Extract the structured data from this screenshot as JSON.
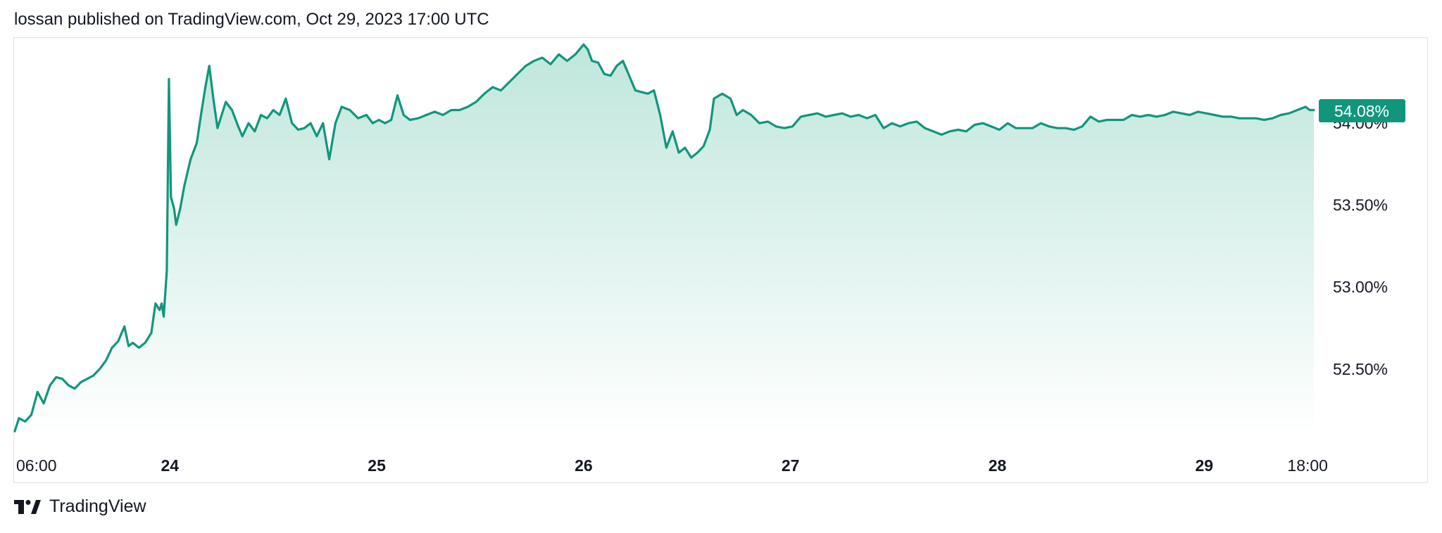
{
  "header": {
    "publish_text": "lossan published on TradingView.com, Oct 29, 2023 17:00 UTC"
  },
  "footer": {
    "brand": "TradingView",
    "logo_icon": "tradingview-logo-icon"
  },
  "colors": {
    "line": "#11967c",
    "fill_top": "#bfe6dc",
    "fill_bottom": "#ffffff",
    "badge": "#11967c",
    "badge_text": "#ffffff",
    "axis_text": "#131722",
    "border": "#e0e3eb"
  },
  "chart_data": {
    "type": "area",
    "title": "",
    "xlabel": "",
    "ylabel": "",
    "grid": false,
    "x_ticks": [
      {
        "label": "06:00",
        "x": 0.0,
        "bold": false
      },
      {
        "label": "24",
        "x": 0.75,
        "bold": true
      },
      {
        "label": "25",
        "x": 1.75,
        "bold": true
      },
      {
        "label": "26",
        "x": 2.75,
        "bold": true
      },
      {
        "label": "27",
        "x": 3.75,
        "bold": true
      },
      {
        "label": "28",
        "x": 4.75,
        "bold": true
      },
      {
        "label": "29",
        "x": 5.75,
        "bold": true
      },
      {
        "label": "18:00",
        "x": 6.25,
        "bold": false
      }
    ],
    "y_ticks": [
      {
        "label": "52.50%",
        "value": 52.5
      },
      {
        "label": "53.00%",
        "value": 53.0
      },
      {
        "label": "53.50%",
        "value": 53.5
      },
      {
        "label": "54.00%",
        "value": 54.0
      }
    ],
    "ylim": [
      52.1,
      54.55
    ],
    "last_value_label": "54.08%",
    "last_value": 54.08,
    "x_unit": "days since Oct 23 00:00",
    "series": [
      {
        "values": [
          [
            0.0,
            52.12
          ],
          [
            0.02,
            52.2
          ],
          [
            0.05,
            52.18
          ],
          [
            0.08,
            52.22
          ],
          [
            0.11,
            52.36
          ],
          [
            0.14,
            52.29
          ],
          [
            0.17,
            52.4
          ],
          [
            0.2,
            52.45
          ],
          [
            0.23,
            52.44
          ],
          [
            0.26,
            52.4
          ],
          [
            0.29,
            52.38
          ],
          [
            0.32,
            52.42
          ],
          [
            0.35,
            52.44
          ],
          [
            0.38,
            52.46
          ],
          [
            0.41,
            52.5
          ],
          [
            0.44,
            52.55
          ],
          [
            0.47,
            52.63
          ],
          [
            0.5,
            52.67
          ],
          [
            0.53,
            52.76
          ],
          [
            0.55,
            52.64
          ],
          [
            0.57,
            52.66
          ],
          [
            0.6,
            52.63
          ],
          [
            0.63,
            52.66
          ],
          [
            0.66,
            52.72
          ],
          [
            0.68,
            52.9
          ],
          [
            0.7,
            52.86
          ],
          [
            0.71,
            52.9
          ],
          [
            0.72,
            52.82
          ],
          [
            0.735,
            53.1
          ],
          [
            0.745,
            54.27
          ],
          [
            0.755,
            53.55
          ],
          [
            0.77,
            53.48
          ],
          [
            0.78,
            53.38
          ],
          [
            0.8,
            53.48
          ],
          [
            0.82,
            53.62
          ],
          [
            0.85,
            53.78
          ],
          [
            0.88,
            53.88
          ],
          [
            0.9,
            54.05
          ],
          [
            0.92,
            54.21
          ],
          [
            0.94,
            54.35
          ],
          [
            0.96,
            54.15
          ],
          [
            0.98,
            53.97
          ],
          [
            1.0,
            54.05
          ],
          [
            1.02,
            54.13
          ],
          [
            1.05,
            54.08
          ],
          [
            1.08,
            53.98
          ],
          [
            1.1,
            53.92
          ],
          [
            1.13,
            54.0
          ],
          [
            1.16,
            53.95
          ],
          [
            1.19,
            54.05
          ],
          [
            1.22,
            54.03
          ],
          [
            1.25,
            54.08
          ],
          [
            1.28,
            54.05
          ],
          [
            1.31,
            54.15
          ],
          [
            1.34,
            54.0
          ],
          [
            1.37,
            53.96
          ],
          [
            1.4,
            53.97
          ],
          [
            1.43,
            54.0
          ],
          [
            1.46,
            53.92
          ],
          [
            1.49,
            54.0
          ],
          [
            1.52,
            53.78
          ],
          [
            1.55,
            54.0
          ],
          [
            1.58,
            54.1
          ],
          [
            1.62,
            54.08
          ],
          [
            1.66,
            54.03
          ],
          [
            1.7,
            54.05
          ],
          [
            1.73,
            54.0
          ],
          [
            1.76,
            54.02
          ],
          [
            1.79,
            54.0
          ],
          [
            1.82,
            54.02
          ],
          [
            1.85,
            54.17
          ],
          [
            1.88,
            54.05
          ],
          [
            1.91,
            54.02
          ],
          [
            1.95,
            54.03
          ],
          [
            1.99,
            54.05
          ],
          [
            2.03,
            54.07
          ],
          [
            2.07,
            54.05
          ],
          [
            2.11,
            54.08
          ],
          [
            2.15,
            54.08
          ],
          [
            2.19,
            54.1
          ],
          [
            2.23,
            54.13
          ],
          [
            2.27,
            54.18
          ],
          [
            2.31,
            54.22
          ],
          [
            2.35,
            54.2
          ],
          [
            2.39,
            54.25
          ],
          [
            2.43,
            54.3
          ],
          [
            2.47,
            54.35
          ],
          [
            2.51,
            54.38
          ],
          [
            2.55,
            54.4
          ],
          [
            2.59,
            54.36
          ],
          [
            2.63,
            54.42
          ],
          [
            2.67,
            54.38
          ],
          [
            2.71,
            54.42
          ],
          [
            2.75,
            54.48
          ],
          [
            2.77,
            54.45
          ],
          [
            2.79,
            54.38
          ],
          [
            2.82,
            54.37
          ],
          [
            2.85,
            54.3
          ],
          [
            2.88,
            54.29
          ],
          [
            2.91,
            54.35
          ],
          [
            2.94,
            54.38
          ],
          [
            2.97,
            54.29
          ],
          [
            3.0,
            54.2
          ],
          [
            3.03,
            54.19
          ],
          [
            3.06,
            54.18
          ],
          [
            3.09,
            54.2
          ],
          [
            3.12,
            54.05
          ],
          [
            3.15,
            53.85
          ],
          [
            3.18,
            53.95
          ],
          [
            3.21,
            53.82
          ],
          [
            3.24,
            53.85
          ],
          [
            3.27,
            53.79
          ],
          [
            3.3,
            53.82
          ],
          [
            3.33,
            53.86
          ],
          [
            3.36,
            53.96
          ],
          [
            3.38,
            54.15
          ],
          [
            3.42,
            54.18
          ],
          [
            3.46,
            54.15
          ],
          [
            3.49,
            54.05
          ],
          [
            3.52,
            54.08
          ],
          [
            3.56,
            54.05
          ],
          [
            3.6,
            54.0
          ],
          [
            3.64,
            54.01
          ],
          [
            3.68,
            53.98
          ],
          [
            3.72,
            53.97
          ],
          [
            3.76,
            53.98
          ],
          [
            3.8,
            54.04
          ],
          [
            3.84,
            54.05
          ],
          [
            3.88,
            54.06
          ],
          [
            3.92,
            54.04
          ],
          [
            3.96,
            54.05
          ],
          [
            4.0,
            54.06
          ],
          [
            4.04,
            54.04
          ],
          [
            4.08,
            54.05
          ],
          [
            4.12,
            54.03
          ],
          [
            4.16,
            54.05
          ],
          [
            4.2,
            53.97
          ],
          [
            4.24,
            54.0
          ],
          [
            4.28,
            53.98
          ],
          [
            4.32,
            54.0
          ],
          [
            4.36,
            54.01
          ],
          [
            4.4,
            53.97
          ],
          [
            4.44,
            53.95
          ],
          [
            4.48,
            53.93
          ],
          [
            4.52,
            53.95
          ],
          [
            4.56,
            53.96
          ],
          [
            4.6,
            53.95
          ],
          [
            4.64,
            53.99
          ],
          [
            4.68,
            54.0
          ],
          [
            4.72,
            53.98
          ],
          [
            4.76,
            53.96
          ],
          [
            4.8,
            54.0
          ],
          [
            4.84,
            53.97
          ],
          [
            4.88,
            53.97
          ],
          [
            4.92,
            53.97
          ],
          [
            4.96,
            54.0
          ],
          [
            5.0,
            53.98
          ],
          [
            5.04,
            53.97
          ],
          [
            5.08,
            53.97
          ],
          [
            5.12,
            53.96
          ],
          [
            5.16,
            53.98
          ],
          [
            5.2,
            54.04
          ],
          [
            5.24,
            54.01
          ],
          [
            5.28,
            54.02
          ],
          [
            5.32,
            54.02
          ],
          [
            5.36,
            54.02
          ],
          [
            5.4,
            54.05
          ],
          [
            5.44,
            54.04
          ],
          [
            5.48,
            54.05
          ],
          [
            5.52,
            54.04
          ],
          [
            5.56,
            54.05
          ],
          [
            5.6,
            54.07
          ],
          [
            5.64,
            54.06
          ],
          [
            5.68,
            54.05
          ],
          [
            5.72,
            54.07
          ],
          [
            5.76,
            54.06
          ],
          [
            5.8,
            54.05
          ],
          [
            5.84,
            54.04
          ],
          [
            5.88,
            54.04
          ],
          [
            5.92,
            54.03
          ],
          [
            5.96,
            54.03
          ],
          [
            6.0,
            54.03
          ],
          [
            6.04,
            54.02
          ],
          [
            6.08,
            54.03
          ],
          [
            6.12,
            54.05
          ],
          [
            6.16,
            54.06
          ],
          [
            6.2,
            54.08
          ],
          [
            6.22,
            54.09
          ],
          [
            6.24,
            54.1
          ],
          [
            6.26,
            54.08
          ],
          [
            6.28,
            54.08
          ]
        ]
      }
    ]
  }
}
